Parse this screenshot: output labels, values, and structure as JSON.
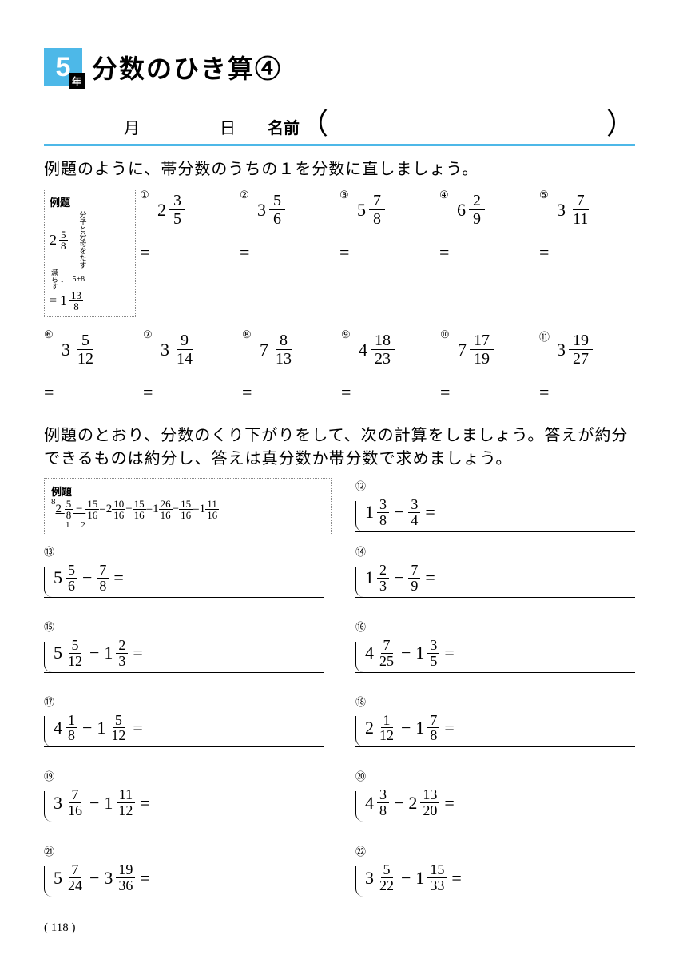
{
  "header": {
    "grade": "5",
    "year_label": "年",
    "title": "分数のひき算④"
  },
  "info": {
    "month": "月",
    "day": "日",
    "name_label": "名前"
  },
  "instruction1": "例題のように、帯分数のうちの１を分数に直しましょう。",
  "example1": {
    "label": "例題",
    "whole1": "2",
    "num1": "5",
    "den1": "8",
    "note1": "減らす",
    "note2": "分子と分母をたす",
    "calc": "5+8",
    "whole2": "1",
    "num2": "13",
    "den2": "8"
  },
  "problems1": [
    {
      "n": "①",
      "w": "2",
      "num": "3",
      "den": "5"
    },
    {
      "n": "②",
      "w": "3",
      "num": "5",
      "den": "6"
    },
    {
      "n": "③",
      "w": "5",
      "num": "7",
      "den": "8"
    },
    {
      "n": "④",
      "w": "6",
      "num": "2",
      "den": "9"
    },
    {
      "n": "⑤",
      "w": "3",
      "num": "7",
      "den": "11"
    }
  ],
  "problems1b": [
    {
      "n": "⑥",
      "w": "3",
      "num": "5",
      "den": "12"
    },
    {
      "n": "⑦",
      "w": "3",
      "num": "9",
      "den": "14"
    },
    {
      "n": "⑧",
      "w": "7",
      "num": "8",
      "den": "13"
    },
    {
      "n": "⑨",
      "w": "4",
      "num": "18",
      "den": "23"
    },
    {
      "n": "⑩",
      "w": "7",
      "num": "17",
      "den": "19"
    },
    {
      "n": "⑪",
      "w": "3",
      "num": "19",
      "den": "27"
    }
  ],
  "instruction2": "例題のとおり、分数のくり下がりをして、次の計算をしましょう。答えが約分できるものは約分し、答えは真分数か帯分数で求めましょう。",
  "example2": {
    "label": "例題",
    "text_parts": [
      "2",
      "5",
      "8",
      "15",
      "16",
      "2",
      "10",
      "16",
      "15",
      "16",
      "1",
      "26",
      "16",
      "15",
      "16",
      "1",
      "11",
      "16"
    ],
    "lcm_left": "8",
    "lcm_bot1": "1",
    "lcm_bot2": "2"
  },
  "equals": "=",
  "minus": "−",
  "problems2": [
    {
      "n": "⑫",
      "w1": "1",
      "n1": "3",
      "d1": "8",
      "w2": "",
      "n2": "3",
      "d2": "4"
    },
    {
      "n": "⑬",
      "w1": "5",
      "n1": "5",
      "d1": "6",
      "w2": "",
      "n2": "7",
      "d2": "8"
    },
    {
      "n": "⑭",
      "w1": "1",
      "n1": "2",
      "d1": "3",
      "w2": "",
      "n2": "7",
      "d2": "9"
    },
    {
      "n": "⑮",
      "w1": "5",
      "n1": "5",
      "d1": "12",
      "w2": "1",
      "n2": "2",
      "d2": "3"
    },
    {
      "n": "⑯",
      "w1": "4",
      "n1": "7",
      "d1": "25",
      "w2": "1",
      "n2": "3",
      "d2": "5"
    },
    {
      "n": "⑰",
      "w1": "4",
      "n1": "1",
      "d1": "8",
      "w2": "1",
      "n2": "5",
      "d2": "12"
    },
    {
      "n": "⑱",
      "w1": "2",
      "n1": "1",
      "d1": "12",
      "w2": "1",
      "n2": "7",
      "d2": "8"
    },
    {
      "n": "⑲",
      "w1": "3",
      "n1": "7",
      "d1": "16",
      "w2": "1",
      "n2": "11",
      "d2": "12"
    },
    {
      "n": "⑳",
      "w1": "4",
      "n1": "3",
      "d1": "8",
      "w2": "2",
      "n2": "13",
      "d2": "20"
    },
    {
      "n": "㉑",
      "w1": "5",
      "n1": "7",
      "d1": "24",
      "w2": "3",
      "n2": "19",
      "d2": "36"
    },
    {
      "n": "㉒",
      "w1": "3",
      "n1": "5",
      "d1": "22",
      "w2": "1",
      "n2": "15",
      "d2": "33"
    }
  ],
  "page_number": "( 118 )"
}
